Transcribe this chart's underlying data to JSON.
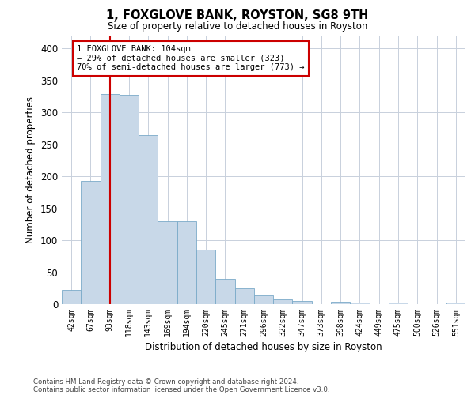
{
  "title": "1, FOXGLOVE BANK, ROYSTON, SG8 9TH",
  "subtitle": "Size of property relative to detached houses in Royston",
  "xlabel": "Distribution of detached houses by size in Royston",
  "ylabel": "Number of detached properties",
  "categories": [
    "42sqm",
    "67sqm",
    "93sqm",
    "118sqm",
    "143sqm",
    "169sqm",
    "194sqm",
    "220sqm",
    "245sqm",
    "271sqm",
    "296sqm",
    "322sqm",
    "347sqm",
    "373sqm",
    "398sqm",
    "424sqm",
    "449sqm",
    "475sqm",
    "500sqm",
    "526sqm",
    "551sqm"
  ],
  "values": [
    22,
    193,
    328,
    327,
    264,
    130,
    130,
    85,
    40,
    25,
    14,
    7,
    5,
    0,
    4,
    3,
    0,
    3,
    0,
    0,
    3
  ],
  "bar_color": "#c8d8e8",
  "bar_edge_color": "#7aaac8",
  "vline_x": 2.0,
  "vline_color": "#cc0000",
  "annotation_text": "1 FOXGLOVE BANK: 104sqm\n← 29% of detached houses are smaller (323)\n70% of semi-detached houses are larger (773) →",
  "annotation_box_color": "#ffffff",
  "annotation_box_edge_color": "#cc0000",
  "ylim": [
    0,
    420
  ],
  "yticks": [
    0,
    50,
    100,
    150,
    200,
    250,
    300,
    350,
    400
  ],
  "footer_line1": "Contains HM Land Registry data © Crown copyright and database right 2024.",
  "footer_line2": "Contains public sector information licensed under the Open Government Licence v3.0.",
  "background_color": "#ffffff",
  "grid_color": "#c8d0dc"
}
